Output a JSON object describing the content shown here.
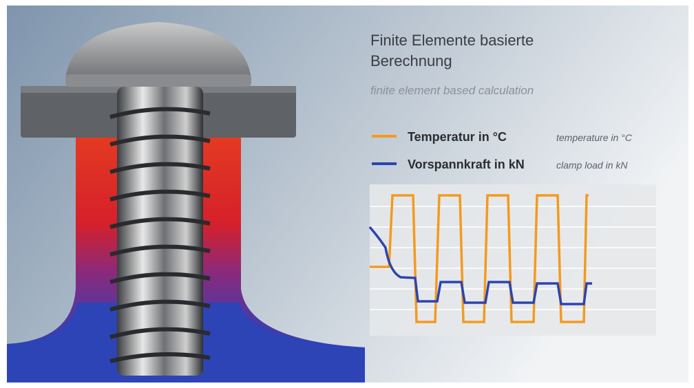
{
  "header": {
    "title_lines": [
      "Finite Elemente basierte",
      "Berechnung"
    ],
    "subtitle": "finite element based calculation"
  },
  "legend": [
    {
      "label": "Temperatur in °C",
      "translation": "temperature in °C"
    },
    {
      "label": "Vorspannkraft in kN",
      "translation": "clamp load in kN"
    }
  ]
}
